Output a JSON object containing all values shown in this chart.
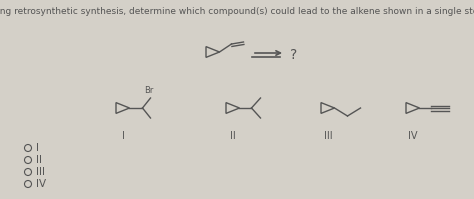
{
  "title": "Using retrosynthetic synthesis, determine which compound(s) could lead to the alkene shown in a single step.",
  "title_fontsize": 6.5,
  "bg_color": "#d4d0c8",
  "text_color": "#555555",
  "options": [
    "I",
    "II",
    "III",
    "IV"
  ],
  "question_mark": "?",
  "br_label": "Br"
}
